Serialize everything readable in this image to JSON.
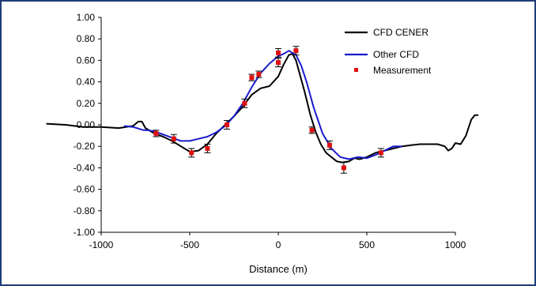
{
  "chart_data": {
    "type": "line",
    "title": "",
    "xlabel": "Distance (m)",
    "ylabel": "",
    "xlim": [
      -1000,
      1000
    ],
    "ylim": [
      -1.0,
      1.0
    ],
    "xticks": [
      -1000,
      -500,
      0,
      500,
      1000
    ],
    "yticks": [
      1.0,
      0.8,
      0.6,
      0.4,
      0.2,
      0.0,
      -0.2,
      -0.4,
      -0.6,
      -0.8,
      -1.0
    ],
    "grid": false,
    "legend_position": "top-right",
    "colors": {
      "cfd_cener": "#000000",
      "other_cfd": "#1a1acc",
      "measurement": "#e01010"
    },
    "series": [
      {
        "name": "CFD CENER",
        "x": [
          -1310,
          -1200,
          -1100,
          -1000,
          -900,
          -820,
          -790,
          -770,
          -750,
          -700,
          -650,
          -600,
          -550,
          -500,
          -450,
          -400,
          -350,
          -300,
          -250,
          -200,
          -150,
          -100,
          -50,
          0,
          30,
          60,
          80,
          100,
          120,
          150,
          180,
          210,
          240,
          270,
          300,
          330,
          360,
          400,
          430,
          460,
          500,
          550,
          600,
          650,
          700,
          750,
          800,
          850,
          900,
          940,
          960,
          980,
          1000,
          1030,
          1060,
          1090,
          1110,
          1130
        ],
        "y": [
          0.01,
          0.0,
          -0.02,
          -0.02,
          -0.03,
          -0.01,
          0.03,
          0.03,
          -0.03,
          -0.08,
          -0.11,
          -0.15,
          -0.2,
          -0.25,
          -0.24,
          -0.18,
          -0.08,
          0.0,
          0.08,
          0.17,
          0.28,
          0.34,
          0.36,
          0.45,
          0.56,
          0.65,
          0.66,
          0.6,
          0.48,
          0.3,
          0.1,
          -0.06,
          -0.18,
          -0.26,
          -0.3,
          -0.34,
          -0.35,
          -0.34,
          -0.31,
          -0.32,
          -0.3,
          -0.26,
          -0.24,
          -0.22,
          -0.2,
          -0.19,
          -0.18,
          -0.18,
          -0.18,
          -0.2,
          -0.24,
          -0.22,
          -0.17,
          -0.18,
          -0.1,
          0.05,
          0.09,
          0.09
        ]
      },
      {
        "name": "Other CFD",
        "x": [
          -870,
          -820,
          -800,
          -780,
          -760,
          -740,
          -700,
          -650,
          -600,
          -550,
          -500,
          -450,
          -400,
          -350,
          -300,
          -250,
          -200,
          -150,
          -100,
          -50,
          0,
          30,
          60,
          100,
          130,
          160,
          200,
          250,
          300,
          350,
          400,
          450,
          500,
          550,
          600,
          650,
          700
        ],
        "y": [
          -0.01,
          -0.02,
          -0.03,
          -0.04,
          -0.05,
          -0.05,
          -0.06,
          -0.09,
          -0.12,
          -0.15,
          -0.15,
          -0.13,
          -0.11,
          -0.07,
          -0.01,
          0.08,
          0.2,
          0.35,
          0.48,
          0.57,
          0.64,
          0.66,
          0.69,
          0.65,
          0.55,
          0.4,
          0.16,
          -0.08,
          -0.22,
          -0.3,
          -0.32,
          -0.3,
          -0.31,
          -0.28,
          -0.24,
          -0.2,
          -0.2
        ]
      },
      {
        "name": "Measurement",
        "x": [
          -690,
          -590,
          -490,
          -400,
          -290,
          -190,
          -150,
          -110,
          0,
          0,
          100,
          190,
          290,
          370,
          580
        ],
        "y": [
          -0.08,
          -0.13,
          -0.26,
          -0.22,
          0.0,
          0.2,
          0.44,
          0.47,
          0.67,
          0.58,
          0.69,
          -0.05,
          -0.19,
          -0.4,
          -0.26
        ],
        "err": [
          0.03,
          0.04,
          0.04,
          0.04,
          0.04,
          0.04,
          0.03,
          0.03,
          0.04,
          0.04,
          0.04,
          0.03,
          0.04,
          0.05,
          0.04
        ]
      }
    ]
  }
}
